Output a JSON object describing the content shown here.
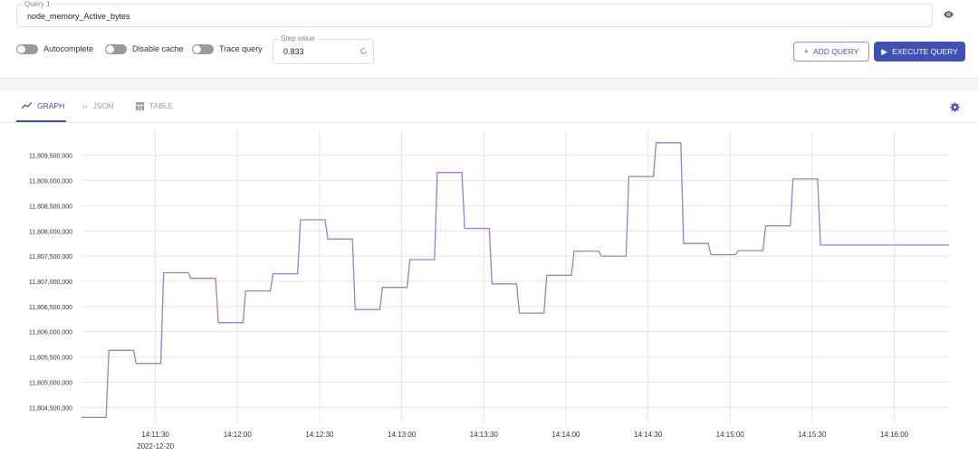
{
  "query": {
    "label": "Query 1",
    "value": "node_memory_Active_bytes"
  },
  "toggles": [
    {
      "label": "Autocomplete",
      "on": false
    },
    {
      "label": "Disable cache",
      "on": false
    },
    {
      "label": "Trace query",
      "on": false
    }
  ],
  "step": {
    "label": "Step value",
    "value": "0.833"
  },
  "buttons": {
    "add_query": "ADD QUERY",
    "execute_query": "EXECUTE QUERY"
  },
  "tabs": {
    "graph": "GRAPH",
    "json": "JSON",
    "table": "TABLE"
  },
  "colors": {
    "accent": "#3f51b5",
    "series": "#9b7fd1"
  },
  "icons": [
    "eye-icon",
    "refresh-icon",
    "plus-icon",
    "play-icon",
    "graph-icon",
    "code-icon",
    "table-icon",
    "gear-icon"
  ],
  "chart_data": {
    "type": "line",
    "step_line": true,
    "grid": true,
    "x_date_label": "2022-12-20",
    "xlim": [
      "14:11:03",
      "14:16:20"
    ],
    "ylim": [
      11804200000,
      11809800000
    ],
    "yticks": [
      "11,804,500,000",
      "11,805,000,000",
      "11,805,500,000",
      "11,806,000,000",
      "11,806,500,000",
      "11,807,000,000",
      "11,807,500,000",
      "11,808,000,000",
      "11,808,500,000",
      "11,809,000,000",
      "11,809,500,000"
    ],
    "xticks": [
      "14:11:30",
      "14:12:00",
      "14:12:30",
      "14:13:00",
      "14:13:30",
      "14:14:00",
      "14:14:30",
      "14:15:00",
      "14:15:30",
      "14:16:00"
    ],
    "series": [
      {
        "x": [
          "14:11:03",
          "14:11:12",
          "14:11:13",
          "14:11:22",
          "14:11:23",
          "14:11:32",
          "14:11:33",
          "14:11:42",
          "14:11:43",
          "14:11:52",
          "14:11:53",
          "14:12:02",
          "14:12:03",
          "14:12:12",
          "14:12:13",
          "14:12:22",
          "14:12:23",
          "14:12:32",
          "14:12:33",
          "14:12:42",
          "14:12:43",
          "14:12:52",
          "14:12:53",
          "14:13:02",
          "14:13:03",
          "14:13:12",
          "14:13:13",
          "14:13:22",
          "14:13:23",
          "14:13:32",
          "14:13:33",
          "14:13:42",
          "14:13:43",
          "14:13:52",
          "14:13:53",
          "14:14:02",
          "14:14:03",
          "14:14:12",
          "14:14:13",
          "14:14:22",
          "14:14:23",
          "14:14:32",
          "14:14:33",
          "14:14:42",
          "14:14:43",
          "14:14:52",
          "14:14:53",
          "14:15:02",
          "14:15:03",
          "14:15:12",
          "14:15:13",
          "14:15:22",
          "14:15:23",
          "14:15:32",
          "14:15:33",
          "14:15:42",
          "14:15:43",
          "14:15:52",
          "14:15:53",
          "14:16:20"
        ],
        "y": [
          11804300000,
          11804300000,
          11805630000,
          11805630000,
          11805370000,
          11805370000,
          11807170000,
          11807170000,
          11807060000,
          11807060000,
          11806180000,
          11806180000,
          11806810000,
          11806810000,
          11807150000,
          11807150000,
          11808220000,
          11808220000,
          11807840000,
          11807840000,
          11806440000,
          11806440000,
          11806880000,
          11806880000,
          11807430000,
          11807430000,
          11809160000,
          11809160000,
          11808050000,
          11808050000,
          11806950000,
          11806950000,
          11806370000,
          11806370000,
          11807120000,
          11807120000,
          11807600000,
          11807600000,
          11807500000,
          11807500000,
          11809080000,
          11809080000,
          11809750000,
          11809750000,
          11807750000,
          11807750000,
          11807530000,
          11807530000,
          11807610000,
          11807610000,
          11808100000,
          11808100000,
          11809030000,
          11809030000,
          11807720000,
          11807720000,
          11807720000,
          11807720000,
          11807720000,
          11807720000
        ]
      }
    ]
  }
}
